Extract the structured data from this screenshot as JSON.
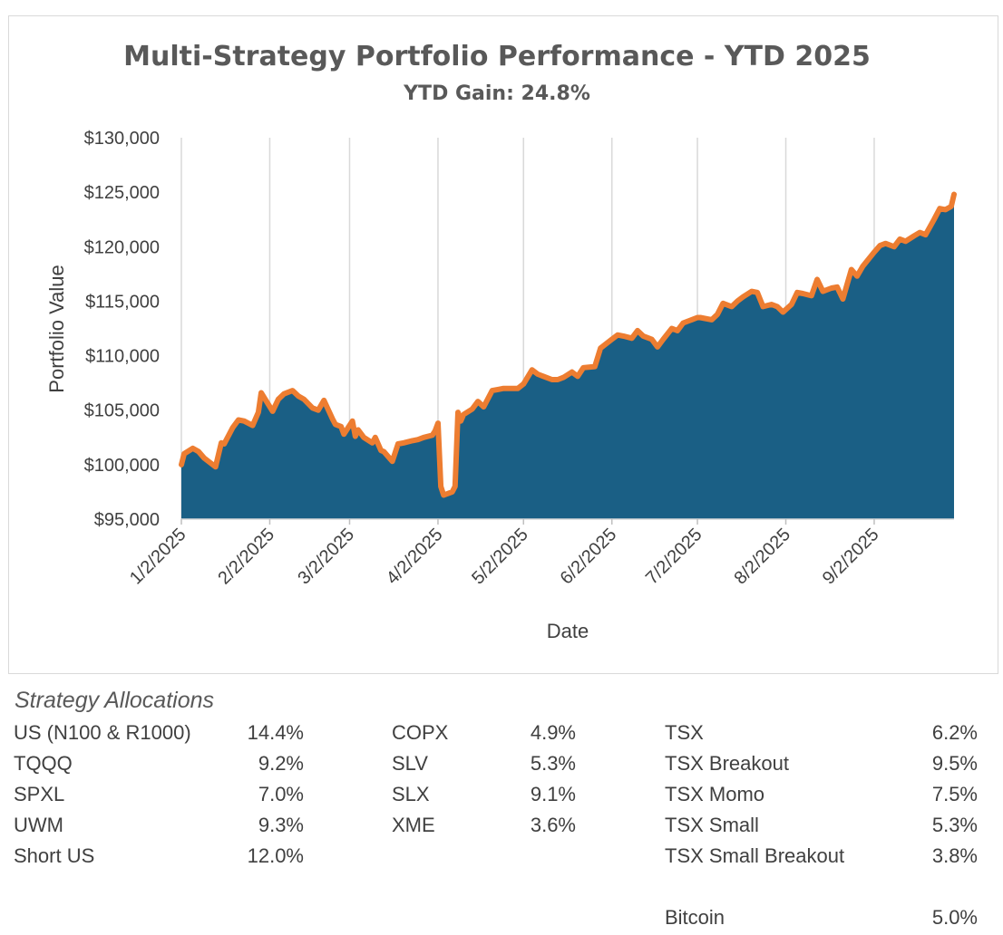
{
  "chart_data": {
    "type": "area",
    "title": "Multi-Strategy Portfolio Performance - YTD 2025",
    "subtitle": "YTD Gain: 24.8%",
    "xlabel": "Date",
    "ylabel": "Portfolio Value",
    "y_ticks": [
      "$95,000",
      "$100,000",
      "$105,000",
      "$110,000",
      "$115,000",
      "$120,000",
      "$125,000",
      "$130,000"
    ],
    "ylim": [
      95000,
      130000
    ],
    "x_ticks": [
      "1/2/2025",
      "2/2/2025",
      "3/2/2025",
      "4/2/2025",
      "5/2/2025",
      "6/2/2025",
      "7/2/2025",
      "8/2/2025",
      "9/2/2025"
    ],
    "xlim": [
      "2025-01-02",
      "2025-09-30"
    ],
    "grid": "vertical",
    "area_color": "#1a5f85",
    "line_color": "#ed7d31",
    "series": [
      {
        "x": [
          "2025-01-02",
          "2025-01-03",
          "2025-01-06",
          "2025-01-08",
          "2025-01-10",
          "2025-01-14",
          "2025-01-16",
          "2025-01-17",
          "2025-01-20",
          "2025-01-22",
          "2025-01-24",
          "2025-01-27",
          "2025-01-29",
          "2025-01-30",
          "2025-02-03",
          "2025-02-05",
          "2025-02-07",
          "2025-02-10",
          "2025-02-12",
          "2025-02-14",
          "2025-02-17",
          "2025-02-19",
          "2025-02-21",
          "2025-02-24",
          "2025-02-25",
          "2025-02-27",
          "2025-02-28",
          "2025-03-03",
          "2025-03-04",
          "2025-03-05",
          "2025-03-07",
          "2025-03-10",
          "2025-03-11",
          "2025-03-13",
          "2025-03-14",
          "2025-03-17",
          "2025-03-19",
          "2025-03-21",
          "2025-03-24",
          "2025-03-26",
          "2025-03-28",
          "2025-03-31",
          "2025-04-01",
          "2025-04-02",
          "2025-04-03",
          "2025-04-04",
          "2025-04-07",
          "2025-04-08",
          "2025-04-09",
          "2025-04-10",
          "2025-04-11",
          "2025-04-14",
          "2025-04-16",
          "2025-04-18",
          "2025-04-21",
          "2025-04-23",
          "2025-04-25",
          "2025-04-28",
          "2025-04-30",
          "2025-05-02",
          "2025-05-05",
          "2025-05-07",
          "2025-05-09",
          "2025-05-12",
          "2025-05-14",
          "2025-05-16",
          "2025-05-19",
          "2025-05-21",
          "2025-05-23",
          "2025-05-27",
          "2025-05-29",
          "2025-06-02",
          "2025-06-04",
          "2025-06-06",
          "2025-06-09",
          "2025-06-11",
          "2025-06-13",
          "2025-06-16",
          "2025-06-18",
          "2025-06-20",
          "2025-06-23",
          "2025-06-25",
          "2025-06-27",
          "2025-06-30",
          "2025-07-02",
          "2025-07-03",
          "2025-07-07",
          "2025-07-09",
          "2025-07-11",
          "2025-07-14",
          "2025-07-16",
          "2025-07-18",
          "2025-07-21",
          "2025-07-23",
          "2025-07-25",
          "2025-07-28",
          "2025-07-30",
          "2025-08-01",
          "2025-08-04",
          "2025-08-06",
          "2025-08-08",
          "2025-08-11",
          "2025-08-13",
          "2025-08-15",
          "2025-08-18",
          "2025-08-20",
          "2025-08-22",
          "2025-08-25",
          "2025-08-27",
          "2025-08-29",
          "2025-09-02",
          "2025-09-04",
          "2025-09-06",
          "2025-09-09",
          "2025-09-11",
          "2025-09-13",
          "2025-09-16",
          "2025-09-18",
          "2025-09-20",
          "2025-09-23",
          "2025-09-25",
          "2025-09-27",
          "2025-09-29",
          "2025-09-30"
        ],
        "y": [
          100000,
          101000,
          101500,
          101200,
          100600,
          99800,
          102000,
          101900,
          103400,
          104100,
          104000,
          103600,
          104800,
          106600,
          104900,
          106000,
          106500,
          106800,
          106300,
          106000,
          105200,
          105000,
          105900,
          104200,
          103700,
          103500,
          102800,
          104000,
          102600,
          103200,
          102500,
          102000,
          102500,
          101300,
          101200,
          100300,
          101900,
          102000,
          102200,
          102300,
          102500,
          102700,
          103100,
          103800,
          98000,
          97200,
          97500,
          98000,
          104800,
          104000,
          104600,
          105100,
          105800,
          105300,
          106800,
          106900,
          107000,
          107000,
          107000,
          107400,
          108700,
          108300,
          108100,
          107800,
          107800,
          108000,
          108500,
          108100,
          108900,
          109000,
          110700,
          111500,
          111900,
          111800,
          111600,
          112300,
          111800,
          111500,
          110800,
          111500,
          112500,
          112300,
          113000,
          113300,
          113500,
          113500,
          113300,
          113800,
          114800,
          114500,
          115000,
          115400,
          115900,
          115800,
          114500,
          114700,
          114500,
          114000,
          114700,
          115800,
          115700,
          115500,
          117000,
          115900,
          116200,
          116300,
          115200,
          117900,
          117300,
          118200,
          119500,
          120100,
          120300,
          120000,
          120700,
          120500,
          121000,
          121300,
          121100,
          122500,
          123500,
          123400,
          123700,
          124800
        ]
      }
    ]
  },
  "allocations": {
    "heading": "Strategy Allocations",
    "col1": [
      {
        "name": "US (N100 & R1000)",
        "pct": "14.4%"
      },
      {
        "name": "TQQQ",
        "pct": "9.2%"
      },
      {
        "name": "SPXL",
        "pct": "7.0%"
      },
      {
        "name": "UWM",
        "pct": "9.3%"
      },
      {
        "name": "Short US",
        "pct": "12.0%"
      }
    ],
    "col2": [
      {
        "name": "COPX",
        "pct": "4.9%"
      },
      {
        "name": "SLV",
        "pct": "5.3%"
      },
      {
        "name": "SLX",
        "pct": "9.1%"
      },
      {
        "name": "XME",
        "pct": "3.6%"
      }
    ],
    "col3": [
      {
        "name": "TSX",
        "pct": "6.2%"
      },
      {
        "name": "TSX Breakout",
        "pct": "9.5%"
      },
      {
        "name": "TSX Momo",
        "pct": "7.5%"
      },
      {
        "name": "TSX Small",
        "pct": "5.3%"
      },
      {
        "name": "TSX Small Breakout",
        "pct": "3.8%"
      },
      {
        "name": "",
        "pct": ""
      },
      {
        "name": "Bitcoin",
        "pct": "5.0%"
      }
    ]
  }
}
